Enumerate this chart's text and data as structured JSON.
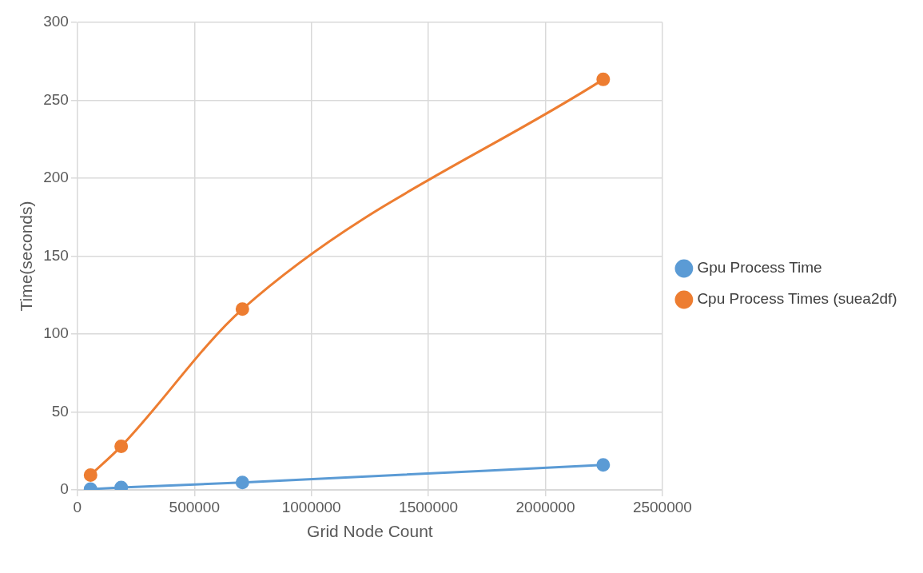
{
  "chart_data": {
    "type": "line",
    "xlabel": "Grid Node Count",
    "ylabel": "Time(seconds)",
    "series": [
      {
        "name": "Gpu Process Time",
        "color": "#5b9bd5",
        "x": [
          56000,
          187000,
          705000,
          2247000
        ],
        "values": [
          0.5,
          1.5,
          4.8,
          16
        ]
      },
      {
        "name": "Cpu Process Times (suea2df)",
        "color": "#ed7d31",
        "x": [
          56000,
          187000,
          705000,
          2247000
        ],
        "values": [
          9.5,
          28,
          116,
          263.4
        ]
      }
    ],
    "xlim": [
      0,
      2500000
    ],
    "xticks": [
      0,
      500000,
      1000000,
      1500000,
      2000000,
      2500000
    ],
    "ylim": [
      0,
      300
    ],
    "yticks": [
      0,
      50,
      100,
      150,
      200,
      250,
      300
    ],
    "grid": true,
    "legend": "right",
    "marker": "circle",
    "line_style": "solid"
  }
}
